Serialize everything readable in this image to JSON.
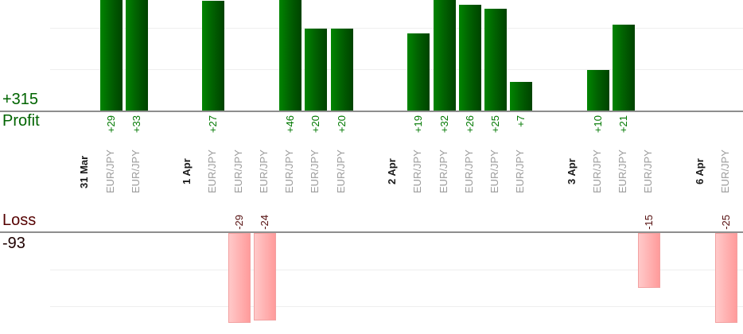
{
  "summary": {
    "profit_label": "Profit",
    "profit_total": "+315",
    "loss_label": "Loss",
    "loss_total": "-93"
  },
  "colors": {
    "profit_text": "#006400",
    "profit_value_text": "#007800",
    "loss_text": "#550000",
    "loss_total_text": "#1e0000",
    "loss_value_text": "#550f0f",
    "date_text": "#1a1a1a",
    "symbol_text": "#9b9b9b",
    "axis_line": "#8e8e8e",
    "grid_line": "#eeeeee",
    "profit_bar_left": "#018501",
    "profit_bar_mid": "#016301",
    "profit_bar_right": "#004200",
    "loss_bar_left": "#ffc9c9",
    "loss_bar_right": "#ff9b9b",
    "loss_bar_border": "#f2a1a1"
  },
  "chart_data": {
    "type": "bar",
    "description": "Per-trade profit/loss bar chart grouped by date; profits grow up from the Profit axis, losses grow down from the Loss axis; tall bars are clipped by the visible area",
    "legend_position": "none",
    "grid": true,
    "gridline_interval": 10,
    "profit_axis": {
      "label": "Profit",
      "total": 315,
      "total_display": "+315"
    },
    "loss_axis": {
      "label": "Loss",
      "total": -93,
      "total_display": "-93"
    },
    "columns": [
      {
        "kind": "date",
        "label": "31 Mar"
      },
      {
        "kind": "trade",
        "label": "EUR/JPY",
        "value": 29,
        "display": "+29"
      },
      {
        "kind": "trade",
        "label": "EUR/JPY",
        "value": 33,
        "display": "+33"
      },
      {
        "kind": "spacer",
        "label": ""
      },
      {
        "kind": "date",
        "label": "1 Apr"
      },
      {
        "kind": "trade",
        "label": "EUR/JPY",
        "value": 27,
        "display": "+27"
      },
      {
        "kind": "trade",
        "label": "EUR/JPY",
        "value": -29,
        "display": "-29"
      },
      {
        "kind": "trade",
        "label": "EUR/JPY",
        "value": -24,
        "display": "-24"
      },
      {
        "kind": "trade",
        "label": "EUR/JPY",
        "value": 46,
        "display": "+46"
      },
      {
        "kind": "trade",
        "label": "EUR/JPY",
        "value": 20,
        "display": "+20"
      },
      {
        "kind": "trade",
        "label": "EUR/JPY",
        "value": 20,
        "display": "+20"
      },
      {
        "kind": "spacer",
        "label": ""
      },
      {
        "kind": "date",
        "label": "2 Apr"
      },
      {
        "kind": "trade",
        "label": "EUR/JPY",
        "value": 19,
        "display": "+19"
      },
      {
        "kind": "trade",
        "label": "EUR/JPY",
        "value": 32,
        "display": "+32"
      },
      {
        "kind": "trade",
        "label": "EUR/JPY",
        "value": 26,
        "display": "+26"
      },
      {
        "kind": "trade",
        "label": "EUR/JPY",
        "value": 25,
        "display": "+25"
      },
      {
        "kind": "trade",
        "label": "EUR/JPY",
        "value": 7,
        "display": "+7"
      },
      {
        "kind": "spacer",
        "label": ""
      },
      {
        "kind": "date",
        "label": "3 Apr"
      },
      {
        "kind": "trade",
        "label": "EUR/JPY",
        "value": 10,
        "display": "+10"
      },
      {
        "kind": "trade",
        "label": "EUR/JPY",
        "value": 21,
        "display": "+21"
      },
      {
        "kind": "trade",
        "label": "EUR/JPY",
        "value": -15,
        "display": "-15"
      },
      {
        "kind": "spacer",
        "label": ""
      },
      {
        "kind": "date",
        "label": "6 Apr"
      },
      {
        "kind": "trade",
        "label": "EUR/JPY",
        "value": -25,
        "display": "-25"
      }
    ]
  }
}
